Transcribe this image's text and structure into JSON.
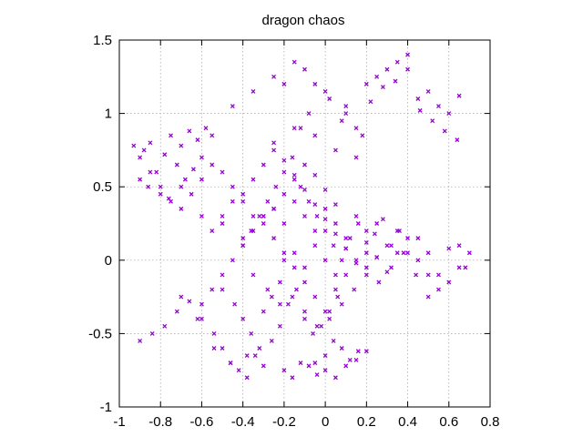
{
  "chart_data": {
    "type": "scatter",
    "title": "dragon chaos",
    "xlim": [
      -1,
      0.8
    ],
    "ylim": [
      -1,
      1.5
    ],
    "xticks": [
      -1,
      -0.8,
      -0.6,
      -0.4,
      -0.2,
      0,
      0.2,
      0.4,
      0.6,
      0.8
    ],
    "xtick_labels": [
      "-1",
      "-0.8",
      "-0.6",
      "-0.4",
      "-0.2",
      "0",
      "0.2",
      "0.4",
      "0.6",
      "0.8"
    ],
    "yticks": [
      -1,
      -0.5,
      0,
      0.5,
      1,
      1.5
    ],
    "ytick_labels": [
      "-1",
      "-0.5",
      "0",
      "0.5",
      "1",
      "1.5"
    ],
    "grid": true,
    "marker": "cross",
    "color": "#9400d3",
    "series": [
      {
        "x": [
          -0.93,
          -0.88,
          -0.85,
          -0.9,
          -0.82,
          -0.78,
          -0.75,
          -0.7,
          -0.66,
          -0.62,
          -0.58,
          -0.86,
          -0.8,
          -0.72,
          -0.68,
          -0.64,
          -0.76,
          -0.7,
          -0.6,
          -0.55,
          -0.9,
          -0.84,
          -0.78,
          -0.72,
          -0.66,
          -0.6,
          -0.54,
          -0.5,
          -0.46,
          -0.42,
          -0.38,
          -0.34,
          -0.3,
          -0.26,
          -0.22,
          -0.5,
          -0.44,
          -0.4,
          -0.36,
          -0.32,
          -0.2,
          -0.16,
          -0.12,
          -0.08,
          -0.04,
          0.0,
          0.04,
          0.08,
          0.12,
          0.16,
          -0.3,
          -0.26,
          -0.22,
          -0.18,
          -0.14,
          -0.1,
          -0.06,
          -0.02,
          0.02,
          0.06,
          -0.4,
          -0.36,
          -0.32,
          -0.28,
          -0.24,
          -0.2,
          -0.16,
          -0.12,
          -0.08,
          -0.04,
          0.0,
          0.04,
          0.08,
          0.12,
          0.16,
          0.2,
          0.24,
          0.28,
          0.32,
          0.36,
          -0.2,
          -0.15,
          -0.1,
          -0.05,
          0.0,
          0.05,
          0.1,
          0.15,
          0.2,
          0.25,
          0.3,
          0.35,
          0.4,
          0.45,
          0.5,
          0.55,
          0.6,
          0.65,
          0.7,
          0.68,
          0.2,
          0.25,
          0.3,
          0.35,
          0.4,
          0.45,
          0.5,
          0.55,
          0.6,
          0.65,
          0.1,
          0.15,
          0.22,
          0.28,
          0.34,
          0.4,
          0.46,
          0.52,
          0.58,
          0.64,
          -0.9,
          -0.85,
          -0.8,
          -0.75,
          -0.7,
          -0.65,
          -0.6,
          -0.55,
          -0.5,
          -0.45,
          -0.4,
          -0.35,
          -0.3,
          -0.25,
          -0.2,
          -0.15,
          -0.1,
          -0.05,
          0.0,
          0.05,
          -0.6,
          -0.55,
          -0.5,
          -0.45,
          -0.4,
          -0.35,
          -0.3,
          -0.25,
          -0.2,
          -0.15,
          -0.1,
          -0.05,
          0.0,
          0.05,
          0.1,
          -0.7,
          -0.62,
          -0.54,
          -0.46,
          -0.38,
          -0.05,
          0.0,
          0.05,
          0.1,
          0.15,
          0.2,
          -0.12,
          -0.08,
          0.02,
          0.08,
          -0.2,
          -0.1,
          0.0,
          0.1,
          0.18,
          -0.45,
          -0.35,
          -0.25,
          -0.15,
          -0.05,
          -0.3,
          -0.25,
          -0.2,
          -0.15,
          -0.1,
          -0.05,
          0.0,
          0.05,
          0.1,
          0.15,
          0.2,
          0.25,
          0.3,
          0.35,
          0.4,
          0.45,
          0.5,
          0.55,
          0.6,
          0.65,
          -0.35,
          -0.28,
          -0.22,
          -0.16,
          -0.1,
          -0.04,
          0.02,
          0.08,
          0.14,
          0.2,
          0.26,
          0.32,
          0.38,
          0.44,
          0.5,
          -0.25,
          -0.15,
          -0.05,
          0.05,
          0.15,
          -0.55,
          -0.5,
          -0.45,
          -0.4,
          -0.35,
          -0.3,
          -0.25,
          -0.2,
          -0.15,
          -0.1,
          -0.05,
          0.0,
          0.05,
          0.1,
          0.15,
          0.2,
          0.25,
          -0.6,
          -0.5,
          -0.4
        ],
        "y": [
          0.78,
          0.75,
          0.8,
          0.55,
          0.6,
          0.72,
          0.85,
          0.78,
          0.88,
          0.82,
          0.9,
          0.5,
          0.45,
          0.65,
          0.55,
          0.62,
          0.42,
          0.5,
          0.7,
          0.85,
          -0.55,
          -0.5,
          -0.45,
          -0.35,
          -0.28,
          -0.4,
          -0.5,
          -0.6,
          -0.7,
          -0.75,
          -0.8,
          -0.65,
          -0.72,
          -0.55,
          -0.45,
          -0.2,
          -0.3,
          -0.4,
          -0.5,
          -0.6,
          -0.75,
          -0.8,
          -0.7,
          -0.72,
          -0.78,
          -0.65,
          -0.55,
          -0.6,
          -0.68,
          -0.62,
          -0.35,
          -0.25,
          -0.15,
          -0.3,
          -0.2,
          -0.4,
          -0.5,
          -0.45,
          -0.35,
          -0.25,
          0.1,
          0.2,
          0.3,
          0.4,
          0.5,
          0.6,
          0.7,
          0.5,
          0.4,
          0.3,
          0.2,
          0.1,
          0.0,
          0.15,
          0.25,
          0.05,
          0.18,
          0.28,
          0.1,
          0.2,
          0.0,
          0.05,
          -0.05,
          0.1,
          0.0,
          -0.1,
          0.08,
          -0.02,
          0.12,
          0.02,
          -0.08,
          0.05,
          0.15,
          0.0,
          0.05,
          -0.1,
          0.08,
          0.1,
          0.05,
          -0.05,
          1.2,
          1.25,
          1.3,
          1.35,
          1.4,
          1.1,
          1.15,
          1.05,
          1.0,
          1.12,
          1.0,
          0.9,
          1.08,
          1.18,
          1.22,
          1.3,
          1.02,
          0.95,
          0.88,
          0.82,
          0.7,
          0.6,
          0.5,
          0.4,
          0.35,
          0.45,
          0.55,
          0.65,
          0.6,
          0.5,
          0.4,
          0.3,
          0.25,
          0.35,
          0.45,
          0.55,
          0.65,
          0.58,
          0.48,
          0.38,
          -0.3,
          -0.2,
          -0.1,
          0.0,
          0.1,
          0.2,
          0.3,
          0.15,
          0.05,
          -0.05,
          -0.15,
          -0.25,
          -0.35,
          -0.2,
          -0.1,
          -0.25,
          -0.4,
          -0.6,
          -0.7,
          -0.65,
          -0.7,
          -0.75,
          -0.8,
          -0.72,
          -0.68,
          -0.62,
          0.9,
          1.0,
          1.1,
          0.95,
          1.2,
          1.3,
          1.15,
          1.05,
          0.85,
          1.05,
          1.15,
          1.25,
          1.35,
          1.2,
          0.3,
          0.35,
          0.25,
          0.4,
          0.3,
          0.2,
          0.35,
          0.25,
          0.15,
          0.3,
          0.2,
          0.25,
          0.1,
          0.2,
          0.05,
          0.15,
          -0.1,
          -0.2,
          -0.15,
          -0.05,
          -0.1,
          -0.2,
          -0.3,
          -0.25,
          -0.35,
          -0.45,
          -0.4,
          -0.3,
          -0.2,
          -0.1,
          -0.15,
          -0.05,
          0.05,
          -0.1,
          -0.25,
          0.8,
          0.9,
          0.85,
          0.75,
          0.7,
          0.2,
          0.3,
          0.4,
          0.45,
          0.55,
          0.65,
          0.75,
          0.68,
          0.58,
          0.48,
          0.38,
          0.28,
          0.18,
          0.08,
          0.0,
          -0.05,
          0.02,
          0.3,
          0.25,
          0.15
        ]
      }
    ]
  }
}
